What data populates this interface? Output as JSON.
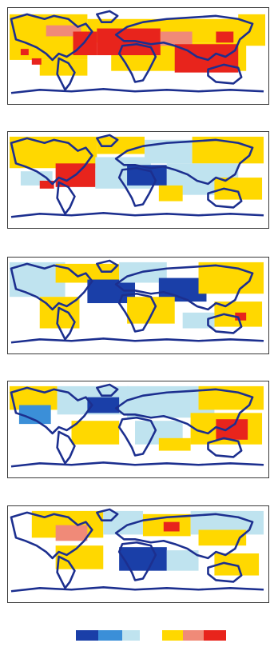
{
  "colors": {
    "strong_decrease": "#1a3fa8",
    "moderate_decrease": "#3b8fd8",
    "weak_decrease": "#bfe3ef",
    "weak_increase": "#ffd800",
    "moderate_increase": "#f08a78",
    "strong_increase": "#e8241c",
    "coastline": "#1c2f8f",
    "frame": "#3a3a3a"
  },
  "maps": [
    {
      "panel": 1,
      "dominant": "increase"
    },
    {
      "panel": 2,
      "dominant": "mixed"
    },
    {
      "panel": 3,
      "dominant": "mixed"
    },
    {
      "panel": 4,
      "dominant": "mixed"
    },
    {
      "panel": 5,
      "dominant": "mixed"
    }
  ],
  "legend": {
    "decrease": [
      "strong_decrease",
      "moderate_decrease",
      "weak_decrease"
    ],
    "increase": [
      "weak_increase",
      "moderate_increase",
      "strong_increase"
    ]
  }
}
